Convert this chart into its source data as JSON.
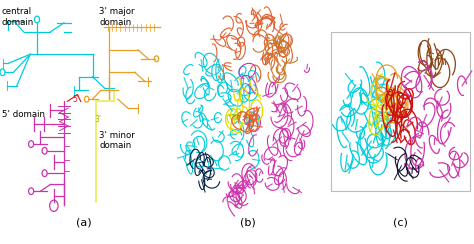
{
  "figure_width": 4.74,
  "figure_height": 2.44,
  "dpi": 100,
  "background_color": "#ffffff",
  "panel_labels": [
    "(a)",
    "(b)",
    "(c)"
  ],
  "panel_label_fontsize": 8,
  "panel_a": {
    "cyan_color": "#00ccdd",
    "magenta_color": "#cc33aa",
    "orange_color": "#e8a020",
    "yellow_color": "#eeee66",
    "red_color": "#dd2222"
  },
  "panel_b": {
    "cyan": "#00ccdd",
    "magenta": "#cc33aa",
    "orange_red": "#e06030",
    "dark_orange": "#c87828",
    "yellow": "#dddd00",
    "dark_navy": "#002244",
    "red": "#cc2222"
  },
  "panel_c": {
    "box_color": "#bbbbbb",
    "cyan": "#00ccdd",
    "magenta": "#cc33aa",
    "red": "#cc1111",
    "brown": "#8B4513",
    "yellow": "#dddd00",
    "orange": "#e8a020",
    "purple": "#7722aa"
  }
}
